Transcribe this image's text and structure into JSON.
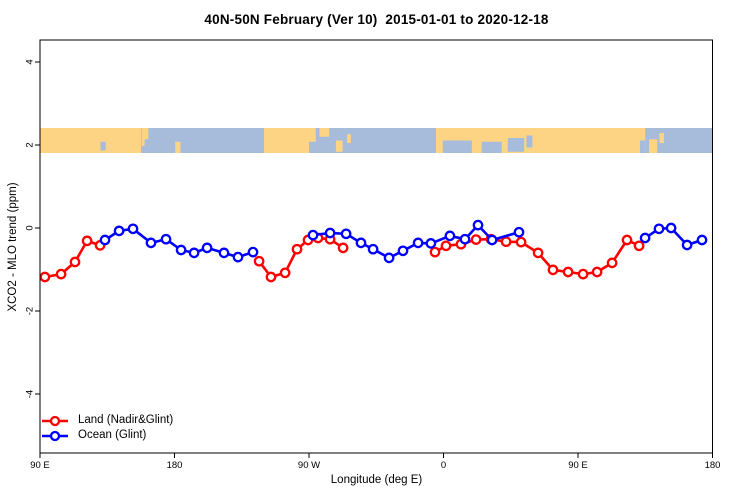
{
  "chart_data": {
    "type": "line",
    "title": "40N-50N February (Ver 10)  2015-01-01 to 2020-12-18",
    "xlabel": "Longitude (deg E)",
    "ylabel": "XCO2 - MLO trend (ppm)",
    "axis_note": "x axis spans 450 degrees of longitude wrapping eastward from 90E through 180, 90W, 0, 90E to 180; axis_deg coordinate = 90 at left edge to 540 at right edge",
    "x_ticks": [
      {
        "axis_deg": 90,
        "label": "90 E"
      },
      {
        "axis_deg": 180,
        "label": "180"
      },
      {
        "axis_deg": 270,
        "label": "90 W"
      },
      {
        "axis_deg": 360,
        "label": "0"
      },
      {
        "axis_deg": 450,
        "label": "90 E"
      },
      {
        "axis_deg": 540,
        "label": "180"
      }
    ],
    "y_ticks": [
      {
        "value": -4,
        "label": "-4"
      },
      {
        "value": -2,
        "label": "-2"
      },
      {
        "value": 0,
        "label": "0"
      },
      {
        "value": 2,
        "label": "2"
      },
      {
        "value": 4,
        "label": "4"
      }
    ],
    "ylim": [
      -5.4,
      4.5
    ],
    "grid": false,
    "legend_position": "bottom-left inside plot, no border",
    "marker": "open-circle-white-fill",
    "series": [
      {
        "name": "Land (Nadir&Glint)",
        "color": "#ff0000",
        "segments": [
          [
            [
              93.3,
              -1.18
            ],
            [
              104.1,
              -1.11
            ],
            [
              113.4,
              -0.82
            ],
            [
              121.5,
              -0.31
            ],
            [
              130.2,
              -0.42
            ]
          ],
          [
            [
              236.6,
              -0.8
            ],
            [
              244.6,
              -1.18
            ],
            [
              254.0,
              -1.08
            ],
            [
              262.0,
              -0.51
            ],
            [
              269.3,
              -0.29
            ],
            [
              276.0,
              -0.24
            ],
            [
              284.1,
              -0.27
            ],
            [
              292.8,
              -0.48
            ]
          ],
          [
            [
              354.3,
              -0.58
            ],
            [
              361.7,
              -0.43
            ],
            [
              371.7,
              -0.39
            ],
            [
              381.8,
              -0.28
            ],
            [
              391.8,
              -0.27
            ],
            [
              401.9,
              -0.33
            ],
            [
              411.9,
              -0.34
            ],
            [
              423.3,
              -0.6
            ],
            [
              433.3,
              -1.01
            ],
            [
              443.4,
              -1.06
            ],
            [
              453.4,
              -1.11
            ],
            [
              462.8,
              -1.06
            ],
            [
              472.8,
              -0.84
            ],
            [
              482.8,
              -0.29
            ],
            [
              490.9,
              -0.43
            ]
          ]
        ]
      },
      {
        "name": "Ocean (Glint)",
        "color": "#0000ff",
        "segments": [
          [
            [
              133.5,
              -0.29
            ],
            [
              142.9,
              -0.07
            ],
            [
              152.2,
              -0.02
            ],
            [
              164.3,
              -0.36
            ],
            [
              174.3,
              -0.27
            ],
            [
              184.4,
              -0.53
            ],
            [
              193.1,
              -0.6
            ],
            [
              201.8,
              -0.48
            ],
            [
              213.1,
              -0.6
            ],
            [
              222.5,
              -0.7
            ],
            [
              232.5,
              -0.58
            ]
          ],
          [
            [
              272.7,
              -0.17
            ],
            [
              284.1,
              -0.12
            ],
            [
              294.8,
              -0.14
            ],
            [
              304.8,
              -0.36
            ],
            [
              312.9,
              -0.51
            ],
            [
              323.6,
              -0.72
            ],
            [
              332.9,
              -0.55
            ],
            [
              343.0,
              -0.36
            ],
            [
              351.6,
              -0.37
            ],
            [
              364.3,
              -0.19
            ],
            [
              374.4,
              -0.27
            ],
            [
              383.1,
              0.07
            ],
            [
              392.5,
              -0.29
            ],
            [
              410.5,
              -0.1
            ]
          ],
          [
            [
              494.9,
              -0.24
            ],
            [
              504.2,
              -0.02
            ],
            [
              512.3,
              0.0
            ],
            [
              523.0,
              -0.41
            ],
            [
              533.0,
              -0.29
            ]
          ]
        ]
      }
    ],
    "map_strip": {
      "description": "horizontal land/ocean map band for 40N-50N drawn across plot at about +1.8 to +2.4 ppm",
      "land_color": "#fcd484",
      "ocean_color": "#a7bcda",
      "segments": [
        {
          "d0": 90,
          "d1": 157.6,
          "type": "land"
        },
        {
          "d0": 157.6,
          "d1": 239.9,
          "type": "ocean"
        },
        {
          "d0": 239.9,
          "d1": 270.0,
          "type": "land"
        },
        {
          "d0": 270.0,
          "d1": 355.0,
          "type": "ocean"
        },
        {
          "d0": 355.0,
          "d1": 494.9,
          "type": "land"
        },
        {
          "d0": 494.9,
          "d1": 540.0,
          "type": "ocean"
        }
      ],
      "details": [
        {
          "d0": 158.0,
          "d1": 162.5,
          "f0": 0.0,
          "f1": 0.45,
          "type": "land"
        },
        {
          "d0": 158.0,
          "d1": 160.0,
          "f0": 0.45,
          "f1": 0.72,
          "type": "land"
        },
        {
          "d0": 180.5,
          "d1": 184.0,
          "f0": 0.55,
          "f1": 1.0,
          "type": "land"
        },
        {
          "d0": 269.5,
          "d1": 274.5,
          "f0": 0.0,
          "f1": 0.55,
          "type": "land"
        },
        {
          "d0": 277.0,
          "d1": 283.5,
          "f0": 0.0,
          "f1": 0.35,
          "type": "land"
        },
        {
          "d0": 288.0,
          "d1": 292.5,
          "f0": 0.5,
          "f1": 0.95,
          "type": "land"
        },
        {
          "d0": 295.5,
          "d1": 298.0,
          "f0": 0.25,
          "f1": 0.6,
          "type": "land"
        },
        {
          "d0": 497.5,
          "d1": 503.0,
          "f0": 0.45,
          "f1": 1.0,
          "type": "land"
        },
        {
          "d0": 504.5,
          "d1": 507.5,
          "f0": 0.2,
          "f1": 0.6,
          "type": "land"
        },
        {
          "d0": 130.5,
          "d1": 134.0,
          "f0": 0.55,
          "f1": 0.9,
          "type": "ocean"
        },
        {
          "d0": 359.5,
          "d1": 379.0,
          "f0": 0.5,
          "f1": 1.0,
          "type": "ocean"
        },
        {
          "d0": 385.5,
          "d1": 399.0,
          "f0": 0.55,
          "f1": 1.0,
          "type": "ocean"
        },
        {
          "d0": 403.0,
          "d1": 414.0,
          "f0": 0.4,
          "f1": 0.95,
          "type": "ocean"
        },
        {
          "d0": 415.5,
          "d1": 419.5,
          "f0": 0.3,
          "f1": 0.78,
          "type": "ocean"
        },
        {
          "d0": 491.5,
          "d1": 494.9,
          "f0": 0.5,
          "f1": 1.0,
          "type": "ocean"
        }
      ]
    }
  }
}
